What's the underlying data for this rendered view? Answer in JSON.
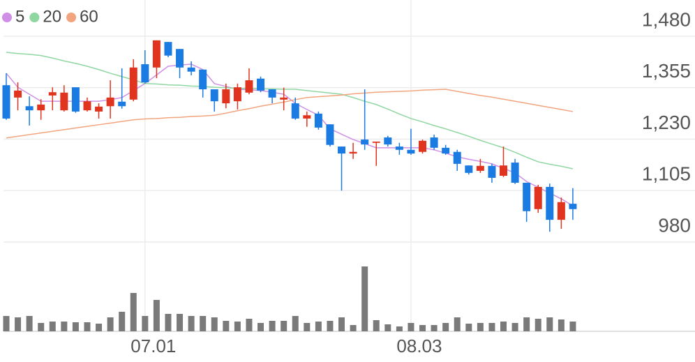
{
  "chart_data": {
    "type": "candlestick",
    "categories": [
      null,
      null,
      null,
      null,
      null,
      null,
      null,
      null,
      null,
      null,
      null,
      null,
      "07.01",
      null,
      null,
      null,
      null,
      null,
      null,
      null,
      null,
      null,
      null,
      null,
      null,
      null,
      null,
      null,
      null,
      null,
      null,
      null,
      null,
      null,
      null,
      "08.03",
      null,
      null,
      null,
      null,
      null,
      null,
      null,
      null,
      null,
      null,
      null,
      null,
      null,
      null
    ],
    "open": [
      1361,
      1331,
      1310,
      1300,
      1336,
      1300,
      1356,
      1300,
      1297,
      1310,
      1321,
      1326,
      1412,
      1404,
      1466,
      1449,
      1404,
      1399,
      1351,
      1317,
      1322,
      1343,
      1377,
      1351,
      1326,
      1317,
      1280,
      1292,
      1266,
      1212,
      1195,
      1229,
      1221,
      1234,
      1212,
      1204,
      1199,
      1234,
      1209,
      1199,
      1166,
      1153,
      1165,
      1141,
      1173,
      1124,
      1060,
      1114,
      1034,
      1073
    ],
    "high": [
      1390,
      1368,
      1334,
      1327,
      1356,
      1361,
      1356,
      1331,
      1317,
      1373,
      1402,
      1424,
      1446,
      1470,
      1466,
      1449,
      1419,
      1399,
      1351,
      1365,
      1365,
      1402,
      1382,
      1351,
      1355,
      1331,
      1297,
      1297,
      1266,
      1212,
      1221,
      1351,
      1224,
      1238,
      1221,
      1255,
      1229,
      1241,
      1216,
      1204,
      1166,
      1182,
      1170,
      1212,
      1182,
      1124,
      1119,
      1122,
      1088,
      1111
    ],
    "low": [
      1277,
      1300,
      1263,
      1277,
      1300,
      1297,
      1294,
      1297,
      1280,
      1280,
      1304,
      1322,
      1365,
      1378,
      1429,
      1378,
      1385,
      1331,
      1297,
      1305,
      1302,
      1339,
      1344,
      1317,
      1300,
      1277,
      1260,
      1253,
      1212,
      1105,
      1182,
      1204,
      1165,
      1212,
      1192,
      1192,
      1195,
      1204,
      1192,
      1153,
      1144,
      1148,
      1124,
      1138,
      1121,
      1029,
      1051,
      1005,
      1012,
      1034
    ],
    "close": [
      1280,
      1348,
      1300,
      1314,
      1344,
      1343,
      1297,
      1322,
      1309,
      1331,
      1310,
      1404,
      1368,
      1470,
      1433,
      1404,
      1394,
      1351,
      1322,
      1351,
      1356,
      1373,
      1348,
      1331,
      1331,
      1280,
      1288,
      1258,
      1216,
      1195,
      1199,
      1217,
      1224,
      1217,
      1204,
      1195,
      1226,
      1209,
      1195,
      1170,
      1148,
      1165,
      1136,
      1166,
      1124,
      1055,
      1114,
      1034,
      1077,
      1060
    ],
    "up_color": "#e0341f",
    "down_color": "#1a7be3",
    "series": [
      {
        "name": "5",
        "color": "#cf8fe6",
        "values": [
          1390,
          1356,
          1339,
          1322,
          1322,
          1322,
          1322,
          1322,
          1322,
          1326,
          1331,
          1348,
          1365,
          1386,
          1407,
          1410,
          1412,
          1399,
          1365,
          1358,
          1351,
          1350,
          1348,
          1344,
          1339,
          1317,
          1302,
          1288,
          1255,
          1242,
          1229,
          1219,
          1209,
          1209,
          1209,
          1209,
          1209,
          1204,
          1196,
          1187,
          1181,
          1176,
          1170,
          1159,
          1148,
          1127,
          1113,
          1099,
          1085,
          1068
        ]
      },
      {
        "name": "20",
        "color": "#8fd6a0",
        "values": [
          1441,
          1438,
          1436,
          1433,
          1427,
          1420,
          1414,
          1407,
          1399,
          1390,
          1382,
          1374,
          1365,
          1364,
          1362,
          1361,
          1359,
          1358,
          1356,
          1355,
          1353,
          1353,
          1352,
          1352,
          1351,
          1351,
          1348,
          1345,
          1342,
          1339,
          1331,
          1322,
          1314,
          1303,
          1291,
          1280,
          1272,
          1263,
          1255,
          1246,
          1237,
          1227,
          1218,
          1209,
          1198,
          1186,
          1175,
          1169,
          1164,
          1158
        ]
      },
      {
        "name": "60",
        "color": "#f2a47e",
        "values": [
          1233,
          1237,
          1241,
          1245,
          1249,
          1253,
          1257,
          1261,
          1265,
          1269,
          1273,
          1277,
          1279,
          1280,
          1282,
          1283,
          1285,
          1286,
          1288,
          1293,
          1299,
          1304,
          1310,
          1315,
          1320,
          1326,
          1331,
          1333,
          1335,
          1337,
          1340,
          1342,
          1344,
          1345,
          1346,
          1347,
          1349,
          1350,
          1351,
          1346,
          1341,
          1336,
          1332,
          1327,
          1322,
          1317,
          1312,
          1307,
          1302,
          1297
        ]
      }
    ],
    "volume": {
      "color": "#7a7a7a",
      "ylim": [
        0,
        125
      ],
      "values": [
        22,
        20,
        22,
        12,
        14,
        14,
        13,
        13,
        11,
        20,
        28,
        55,
        22,
        45,
        25,
        25,
        22,
        22,
        20,
        15,
        14,
        18,
        12,
        15,
        15,
        22,
        12,
        14,
        15,
        20,
        9,
        93,
        16,
        10,
        7,
        12,
        9,
        9,
        12,
        20,
        11,
        12,
        12,
        14,
        12,
        20,
        18,
        20,
        17,
        14
      ]
    },
    "ylim": [
      980,
      1568
    ],
    "yticks": [
      {
        "value": 1480,
        "label": "1,480"
      },
      {
        "value": 1355,
        "label": "1,355"
      },
      {
        "value": 1230,
        "label": "1,230"
      },
      {
        "value": 1105,
        "label": "1,105"
      },
      980
    ],
    "grid": true,
    "legend": "top-left"
  }
}
